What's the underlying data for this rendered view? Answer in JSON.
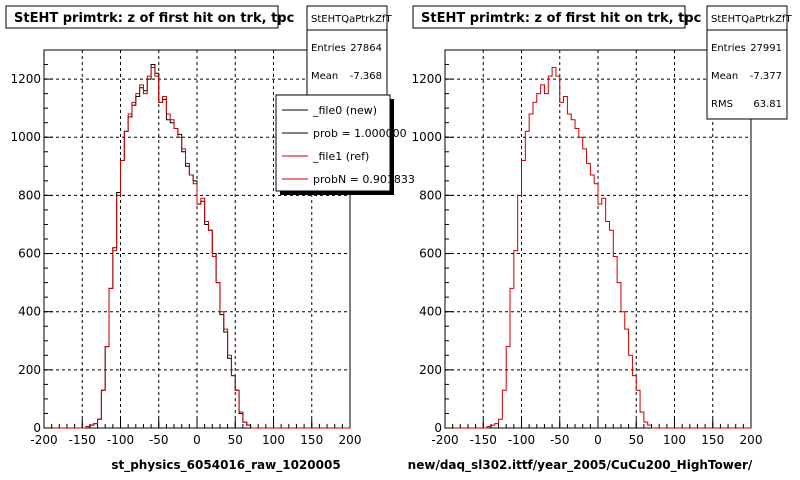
{
  "footer": "",
  "chart_data": [
    {
      "type": "histogram",
      "title": "StEHT primtrk: z of first hit on trk, tpc",
      "xlabel": "st_physics_6054016_raw_1020005",
      "xlim": [
        -200,
        200
      ],
      "ylim": [
        0,
        1300
      ],
      "xticks": [
        -200,
        -150,
        -100,
        -50,
        0,
        50,
        100,
        150,
        200
      ],
      "yticks": [
        0,
        200,
        400,
        600,
        800,
        1000,
        1200
      ],
      "grid": true,
      "bin_edges_start": -200,
      "bin_width": 5,
      "stats": {
        "name": "StEHTQaPtrkZfT",
        "rows": [
          {
            "label": "Entries",
            "value": "27864"
          },
          {
            "label": "Mean",
            "value": "-7.368"
          }
        ]
      },
      "legend": {
        "placement": "right",
        "entries": [
          {
            "label": "_file0 (new)",
            "color": "#000000"
          },
          {
            "label": "prob = 1.000000",
            "color": "#000000"
          },
          {
            "label": "_file1 (ref)",
            "color": "#cc0000"
          },
          {
            "label": "probN = 0.901833",
            "color": "#cc0000"
          }
        ]
      },
      "series": [
        {
          "name": "_file0 (new)",
          "color": "#000000",
          "values": [
            0,
            0,
            0,
            0,
            0,
            0,
            0,
            0,
            0,
            0,
            0,
            5,
            10,
            15,
            30,
            130,
            280,
            480,
            620,
            810,
            920,
            1020,
            1070,
            1110,
            1140,
            1170,
            1160,
            1200,
            1250,
            1220,
            1120,
            1130,
            1060,
            1050,
            1030,
            1010,
            950,
            900,
            870,
            850,
            770,
            780,
            700,
            680,
            600,
            500,
            390,
            330,
            240,
            180,
            130,
            50,
            20,
            10,
            0,
            0,
            0,
            0,
            0,
            0,
            0,
            0,
            0,
            0,
            0,
            0,
            0,
            0,
            0,
            0,
            0,
            0,
            0,
            0,
            0,
            0,
            0,
            0,
            0,
            0
          ],
          "note_values_are_counts_per_5_unit_bin_from_-200": ""
        },
        {
          "name": "_file1 (ref)",
          "color": "#cc0000",
          "values": [
            0,
            0,
            0,
            0,
            0,
            0,
            0,
            0,
            0,
            0,
            0,
            5,
            10,
            15,
            30,
            130,
            280,
            480,
            610,
            800,
            920,
            1020,
            1080,
            1120,
            1150,
            1180,
            1150,
            1210,
            1240,
            1210,
            1120,
            1140,
            1080,
            1060,
            1030,
            1000,
            960,
            910,
            870,
            840,
            770,
            790,
            710,
            680,
            590,
            500,
            400,
            340,
            250,
            180,
            130,
            55,
            20,
            10,
            0,
            0,
            0,
            0,
            0,
            0,
            0,
            0,
            0,
            0,
            0,
            0,
            0,
            0,
            0,
            0,
            0,
            0,
            0,
            0,
            0,
            0,
            0,
            0,
            0,
            0
          ]
        }
      ]
    },
    {
      "type": "histogram",
      "title": "StEHT primtrk: z of first hit on trk, tpc",
      "xlabel": "new/daq_sl302.ittf/year_2005/CuCu200_HighTower/",
      "xlim": [
        -200,
        200
      ],
      "ylim": [
        0,
        1300
      ],
      "xticks": [
        -200,
        -150,
        -100,
        -50,
        0,
        50,
        100,
        150,
        200
      ],
      "yticks": [
        0,
        200,
        400,
        600,
        800,
        1000,
        1200
      ],
      "grid": true,
      "bin_edges_start": -200,
      "bin_width": 5,
      "stats": {
        "name": "StEHTQaPtrkZfT",
        "rows": [
          {
            "label": "Entries",
            "value": "27991"
          },
          {
            "label": "Mean",
            "value": "-7.377"
          },
          {
            "label": "RMS",
            "value": "63.81"
          }
        ]
      },
      "series": [
        {
          "name": "",
          "color": "#cc0000",
          "values": [
            0,
            0,
            0,
            0,
            0,
            0,
            0,
            0,
            0,
            0,
            0,
            5,
            10,
            15,
            30,
            130,
            280,
            480,
            610,
            800,
            920,
            1020,
            1080,
            1120,
            1150,
            1180,
            1150,
            1210,
            1240,
            1210,
            1120,
            1140,
            1080,
            1060,
            1030,
            1000,
            960,
            910,
            870,
            840,
            770,
            790,
            710,
            680,
            590,
            500,
            400,
            340,
            250,
            180,
            130,
            55,
            20,
            10,
            0,
            0,
            0,
            0,
            0,
            0,
            0,
            0,
            0,
            0,
            0,
            0,
            0,
            0,
            0,
            0,
            0,
            0,
            0,
            0,
            0,
            0,
            0,
            0,
            0,
            0
          ]
        }
      ]
    }
  ]
}
